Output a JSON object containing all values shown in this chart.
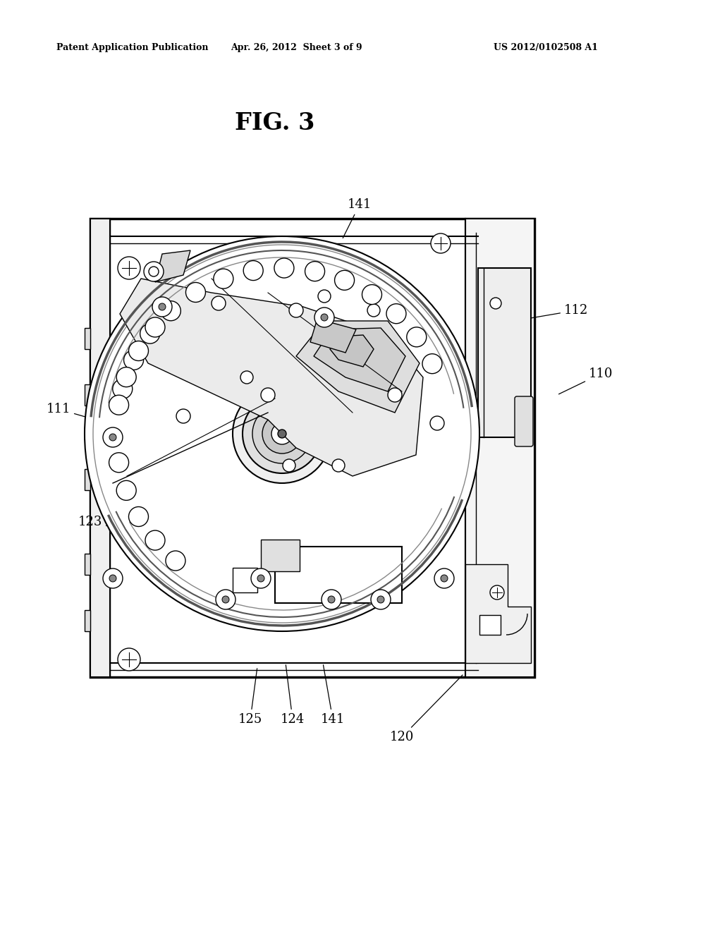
{
  "title": "FIG. 3",
  "header_left": "Patent Application Publication",
  "header_center": "Apr. 26, 2012  Sheet 3 of 9",
  "header_right": "US 2012/0102508 A1",
  "bg": "#ffffff",
  "lc": "#000000",
  "gray_light": "#e8e8e8",
  "gray_mid": "#cccccc",
  "gray_dark": "#999999"
}
